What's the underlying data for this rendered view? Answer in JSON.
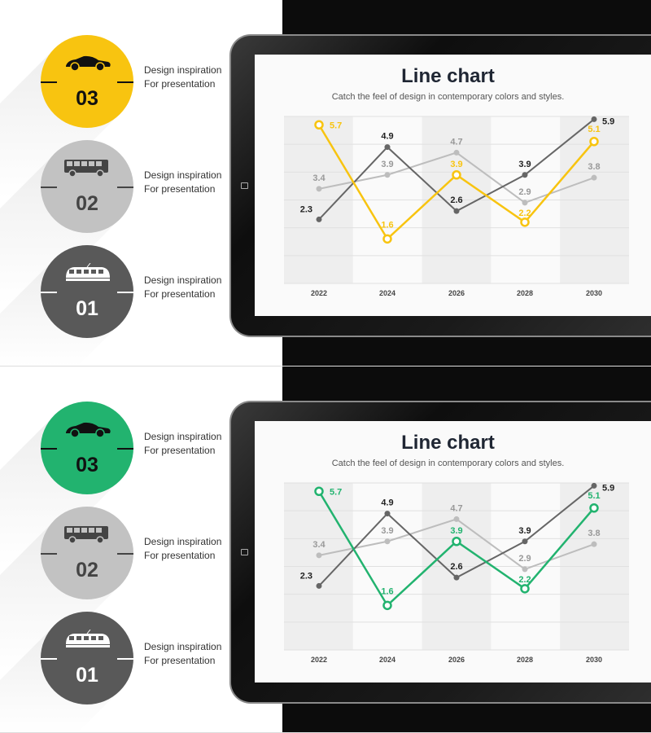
{
  "slides": [
    {
      "accent": "#f8c410",
      "chart_title": "Line chart",
      "chart_subtitle": "Catch the feel of design in contemporary colors and styles.",
      "items": [
        {
          "number": "03",
          "icon": "car-icon",
          "text": "Design inspiration For presentation",
          "color": "#f8c410",
          "fg": "#111111"
        },
        {
          "number": "02",
          "icon": "bus-icon",
          "text": "Design inspiration For presentation",
          "color": "#c2c2c2",
          "fg": "#444444"
        },
        {
          "number": "01",
          "icon": "tram-icon",
          "text": "Design inspiration For presentation",
          "color": "#595959",
          "fg": "#ffffff"
        }
      ]
    },
    {
      "accent": "#22b36f",
      "chart_title": "Line chart",
      "chart_subtitle": "Catch the feel of design in contemporary colors and styles.",
      "items": [
        {
          "number": "03",
          "icon": "car-icon",
          "text": "Design inspiration For presentation",
          "color": "#22b36f",
          "fg": "#111111"
        },
        {
          "number": "02",
          "icon": "bus-icon",
          "text": "Design inspiration For presentation",
          "color": "#c2c2c2",
          "fg": "#444444"
        },
        {
          "number": "01",
          "icon": "tram-icon",
          "text": "Design inspiration For presentation",
          "color": "#595959",
          "fg": "#ffffff"
        }
      ]
    }
  ],
  "chart_data": {
    "type": "line",
    "title": "Line chart",
    "subtitle": "Catch the feel of design in contemporary colors and styles.",
    "categories": [
      "2022",
      "2024",
      "2026",
      "2028",
      "2030"
    ],
    "ylim": [
      0,
      6
    ],
    "grid": true,
    "series": [
      {
        "values": [
          3.4,
          3.9,
          4.7,
          2.9,
          3.8
        ],
        "color": "#bdbdbd",
        "marker": "dot"
      },
      {
        "values": [
          2.3,
          4.9,
          2.6,
          3.9,
          5.9
        ],
        "color": "#666666",
        "marker": "dot"
      },
      {
        "values": [
          5.7,
          1.6,
          3.9,
          2.2,
          5.1
        ],
        "color": "accent",
        "marker": "ring"
      }
    ]
  }
}
